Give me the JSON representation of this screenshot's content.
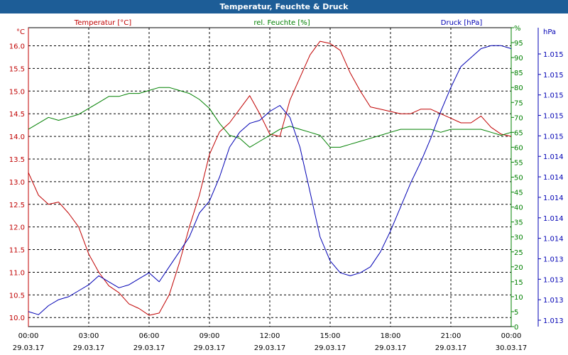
{
  "window": {
    "title": "Temperatur, Feuchte & Druck"
  },
  "colors": {
    "temperature": "#c00000",
    "humidity": "#008000",
    "pressure": "#0000b4",
    "titlebar": "#1d5d97"
  },
  "chart_data": {
    "type": "line",
    "title": "Temperatur, Feuchte & Druck",
    "grid": true,
    "x_ticks": [
      {
        "time": "00:00",
        "date": "29.03.17"
      },
      {
        "time": "03:00",
        "date": "29.03.17"
      },
      {
        "time": "06:00",
        "date": "29.03.17"
      },
      {
        "time": "09:00",
        "date": "29.03.17"
      },
      {
        "time": "12:00",
        "date": "29.03.17"
      },
      {
        "time": "15:00",
        "date": "29.03.17"
      },
      {
        "time": "18:00",
        "date": "29.03.17"
      },
      {
        "time": "21:00",
        "date": "29.03.17"
      },
      {
        "time": "00:00",
        "date": "30.03.17"
      }
    ],
    "xlim": [
      0,
      24
    ],
    "axes": {
      "temperature": {
        "label": "Temperatur [°C]",
        "unit": "°C",
        "ylim": [
          9.8,
          16.4
        ],
        "ticks": [
          "10.0",
          "10.5",
          "11.0",
          "11.5",
          "12.0",
          "12.5",
          "13.0",
          "13.5",
          "14.0",
          "14.5",
          "15.0",
          "15.5",
          "16.0"
        ]
      },
      "humidity": {
        "label": "rel. Feuchte [%]",
        "unit": "%",
        "ylim": [
          0,
          100
        ],
        "ticks": [
          "0",
          "5",
          "10",
          "15",
          "20",
          "25",
          "30",
          "35",
          "40",
          "45",
          "50",
          "55",
          "60",
          "65",
          "70",
          "75",
          "80",
          "85",
          "90",
          "95",
          "%"
        ]
      },
      "pressure": {
        "label": "Druck [hPa]",
        "unit": "hPa",
        "ylim": [
          0,
          100
        ],
        "ticks": [
          "1.013",
          "1.013",
          "1.013",
          "1.013",
          "1.014",
          "1.014",
          "1.014",
          "1.014",
          "1.014",
          "1.015",
          "1.015",
          "1.015",
          "1.015",
          "1.015"
        ]
      }
    },
    "series": [
      {
        "name": "Temperatur [°C]",
        "axis": "temperature",
        "x": [
          0,
          0.5,
          1,
          1.5,
          2,
          2.5,
          3,
          3.5,
          4,
          4.5,
          5,
          5.5,
          6,
          6.5,
          7,
          7.5,
          8,
          8.5,
          9,
          9.5,
          10,
          10.5,
          11,
          11.5,
          12,
          12.5,
          13,
          13.5,
          14,
          14.5,
          15,
          15.5,
          16,
          16.5,
          17,
          17.5,
          18,
          18.5,
          19,
          19.5,
          20,
          20.5,
          21,
          21.5,
          22,
          22.5,
          23,
          23.5,
          24
        ],
        "values": [
          13.2,
          12.7,
          12.5,
          12.55,
          12.3,
          12.0,
          11.4,
          11.0,
          10.7,
          10.55,
          10.3,
          10.2,
          10.05,
          10.1,
          10.5,
          11.2,
          12.0,
          12.7,
          13.6,
          14.1,
          14.3,
          14.6,
          14.9,
          14.5,
          14.05,
          14.0,
          14.8,
          15.3,
          15.8,
          16.1,
          16.05,
          15.9,
          15.4,
          15.0,
          14.65,
          14.6,
          14.55,
          14.5,
          14.5,
          14.6,
          14.6,
          14.5,
          14.4,
          14.3,
          14.3,
          14.45,
          14.2,
          14.05,
          14.0
        ]
      },
      {
        "name": "rel. Feuchte [%]",
        "axis": "humidity",
        "x": [
          0,
          0.5,
          1,
          1.5,
          2,
          2.5,
          3,
          3.5,
          4,
          4.5,
          5,
          5.5,
          6,
          6.5,
          7,
          7.5,
          8,
          8.5,
          9,
          9.5,
          10,
          10.5,
          11,
          11.5,
          12,
          12.5,
          13,
          13.5,
          14,
          14.5,
          15,
          15.5,
          16,
          16.5,
          17,
          17.5,
          18,
          18.5,
          19,
          19.5,
          20,
          20.5,
          21,
          21.5,
          22,
          22.5,
          23,
          23.5,
          24
        ],
        "values": [
          66,
          68,
          70,
          69,
          70,
          71,
          73,
          75,
          77,
          77,
          78,
          78,
          79,
          80,
          80,
          79,
          78,
          76,
          73,
          68,
          64,
          63,
          60,
          62,
          64,
          66,
          67,
          66,
          65,
          64,
          60,
          60,
          61,
          62,
          63,
          64,
          65,
          66,
          66,
          66,
          66,
          65,
          66,
          66,
          66,
          66,
          65,
          64,
          65
        ]
      },
      {
        "name": "Druck [hPa]",
        "axis": "pressure",
        "x": [
          0,
          0.5,
          1,
          1.5,
          2,
          2.5,
          3,
          3.5,
          4,
          4.5,
          5,
          5.5,
          6,
          6.5,
          7,
          7.5,
          8,
          8.5,
          9,
          9.5,
          10,
          10.5,
          11,
          11.5,
          12,
          12.5,
          13,
          13.5,
          14,
          14.5,
          15,
          15.5,
          16,
          16.5,
          17,
          17.5,
          18,
          18.5,
          19,
          19.5,
          20,
          20.5,
          21,
          21.5,
          22,
          22.5,
          23,
          23.5,
          24
        ],
        "values": [
          5,
          4,
          7,
          9,
          10,
          12,
          14,
          17,
          15,
          13,
          14,
          16,
          18,
          15,
          20,
          25,
          30,
          38,
          42,
          50,
          60,
          65,
          68,
          69,
          72,
          74,
          70,
          60,
          45,
          30,
          22,
          18,
          17,
          18,
          20,
          25,
          32,
          40,
          48,
          55,
          63,
          72,
          80,
          87,
          90,
          93,
          94,
          94,
          93
        ]
      }
    ]
  }
}
